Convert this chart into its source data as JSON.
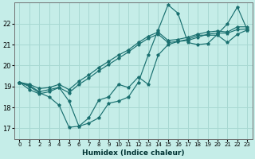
{
  "xlabel": "Humidex (Indice chaleur)",
  "bg_color": "#c5ede8",
  "grid_color": "#a8d8d2",
  "line_color": "#1a7070",
  "xlim": [
    -0.5,
    23.5
  ],
  "ylim": [
    16.5,
    23.0
  ],
  "yticks": [
    17,
    18,
    19,
    20,
    21,
    22
  ],
  "xticks": [
    0,
    1,
    2,
    3,
    4,
    5,
    6,
    7,
    8,
    9,
    10,
    11,
    12,
    13,
    14,
    15,
    16,
    17,
    18,
    19,
    20,
    21,
    22,
    23
  ],
  "line1_y": [
    19.2,
    19.0,
    18.7,
    18.5,
    18.1,
    17.05,
    17.1,
    17.25,
    17.5,
    18.2,
    18.3,
    18.5,
    19.2,
    20.5,
    21.7,
    22.9,
    22.5,
    21.1,
    21.0,
    21.05,
    21.5,
    22.0,
    22.8,
    21.7
  ],
  "line2_y": [
    19.2,
    18.85,
    18.65,
    18.75,
    18.95,
    18.3,
    17.1,
    17.5,
    18.35,
    18.5,
    19.1,
    18.95,
    19.45,
    19.1,
    20.5,
    21.0,
    21.15,
    21.25,
    21.45,
    21.45,
    21.45,
    21.1,
    21.5,
    21.7
  ],
  "line3_y": [
    19.2,
    19.05,
    18.75,
    18.85,
    18.95,
    18.7,
    19.1,
    19.4,
    19.75,
    20.05,
    20.35,
    20.65,
    21.0,
    21.3,
    21.5,
    21.1,
    21.15,
    21.2,
    21.35,
    21.5,
    21.55,
    21.55,
    21.72,
    21.75
  ],
  "line4_y": [
    19.2,
    19.1,
    18.9,
    18.95,
    19.1,
    18.85,
    19.25,
    19.55,
    19.9,
    20.2,
    20.5,
    20.75,
    21.1,
    21.4,
    21.6,
    21.2,
    21.25,
    21.35,
    21.5,
    21.6,
    21.65,
    21.6,
    21.85,
    21.85
  ]
}
